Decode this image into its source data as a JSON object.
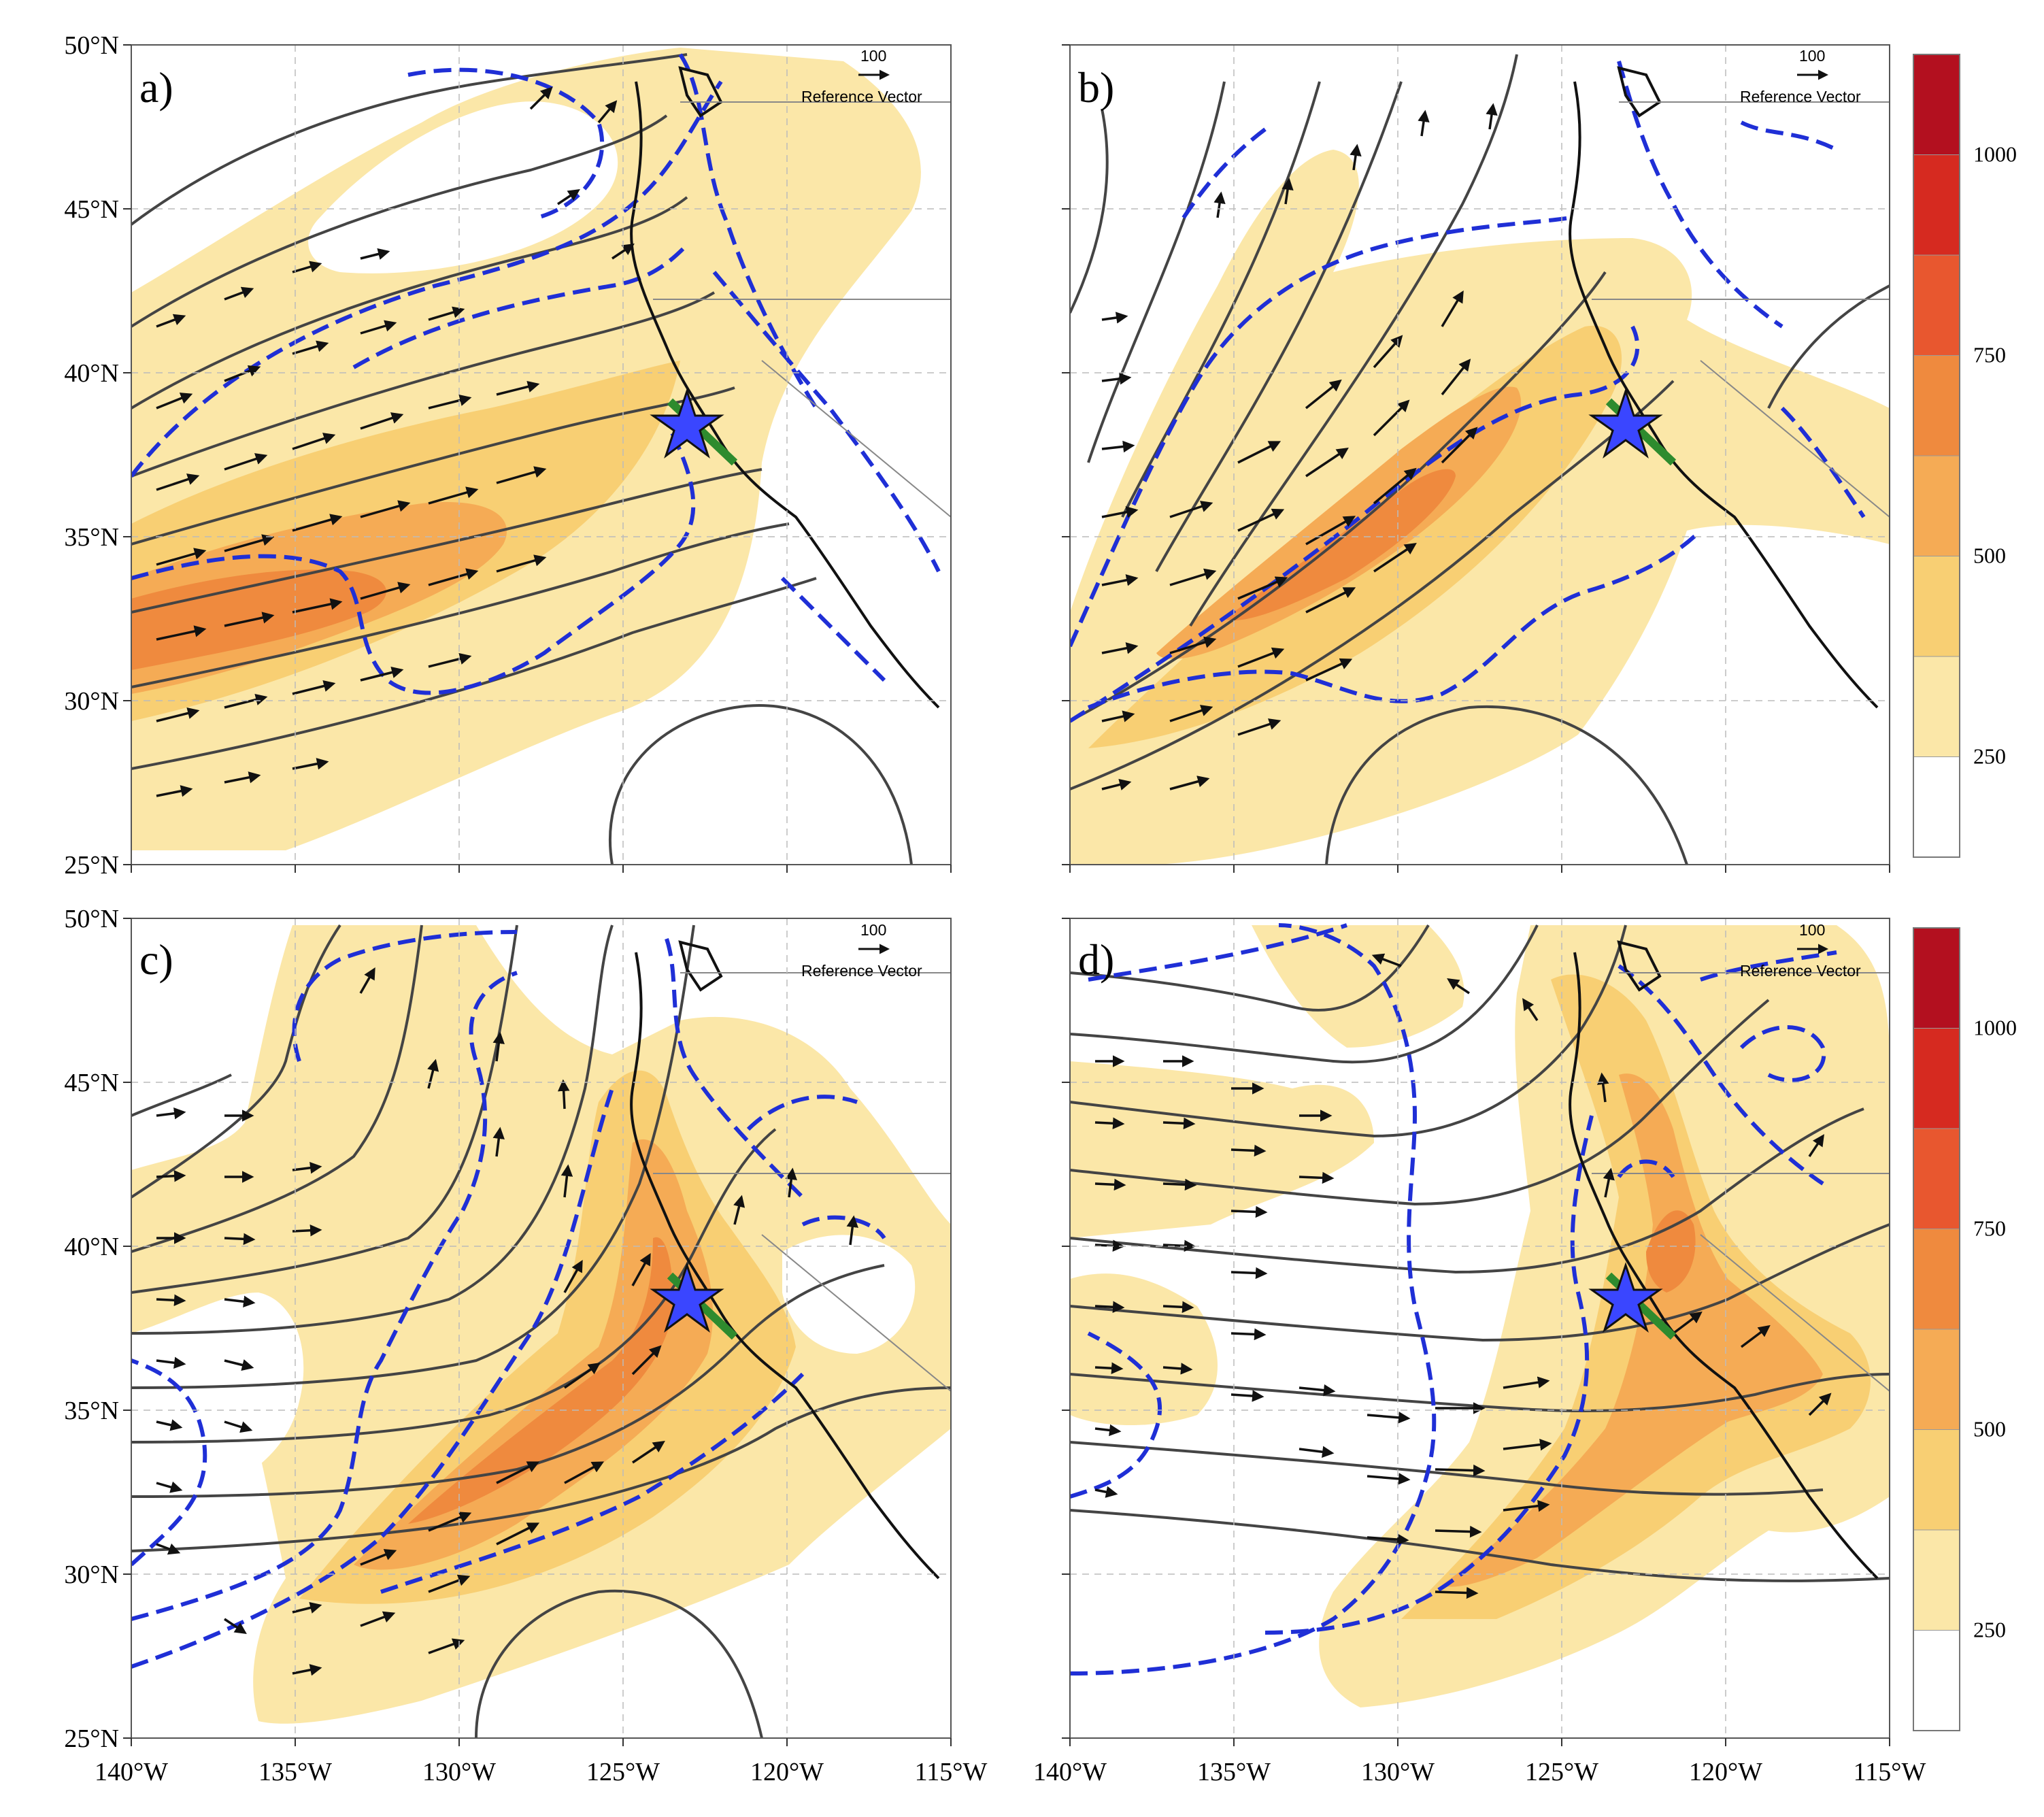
{
  "figure": {
    "panels": [
      {
        "label": "a)",
        "ref_value": "100",
        "ref_text": "Reference Vector"
      },
      {
        "label": "b)",
        "ref_value": "100",
        "ref_text": "Reference Vector"
      },
      {
        "label": "c)",
        "ref_value": "100",
        "ref_text": "Reference Vector"
      },
      {
        "label": "d)",
        "ref_value": "100",
        "ref_text": "Reference Vector"
      }
    ],
    "lat_ticks": [
      "50°N",
      "45°N",
      "40°N",
      "35°N",
      "30°N",
      "25°N"
    ],
    "lon_ticks": [
      "140°W",
      "135°W",
      "130°W",
      "125°W",
      "120°W",
      "115°W"
    ],
    "colorbar": {
      "labels": [
        "250",
        "500",
        "750",
        "1000"
      ],
      "colors": [
        "#ffffff",
        "#fbe7a8",
        "#f8cf73",
        "#f5ab55",
        "#ef8a3e",
        "#e8572f",
        "#d62a20",
        "#b3101f"
      ]
    },
    "extent": {
      "lon": [
        -140,
        -115
      ],
      "lat": [
        25,
        50
      ]
    },
    "star_location": {
      "lon": -123.1,
      "lat": 38.4
    }
  }
}
